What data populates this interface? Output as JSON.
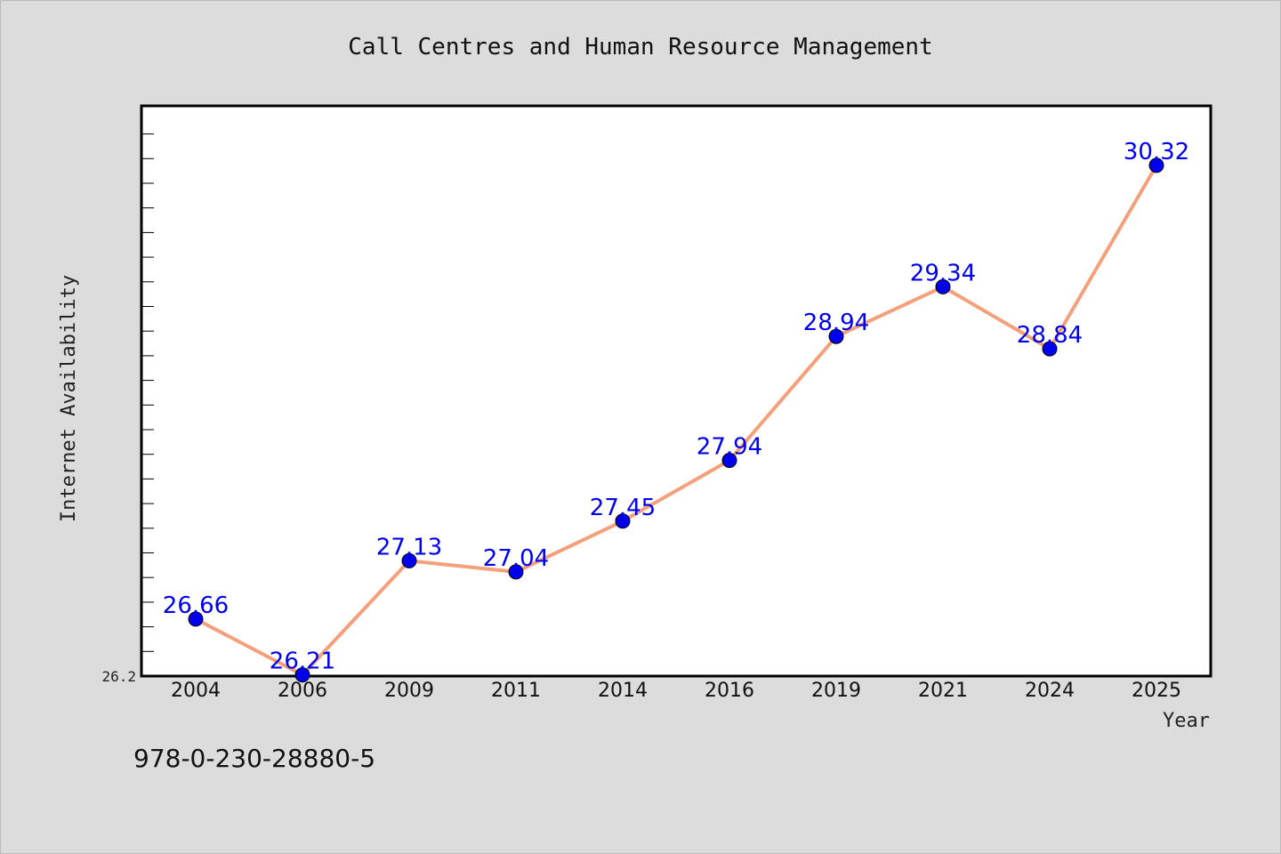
{
  "chart_data": {
    "type": "line",
    "title": "Call Centres and Human Resource Management",
    "xlabel": "Year",
    "ylabel": "Internet Availability",
    "categories": [
      "2004",
      "2006",
      "2009",
      "2011",
      "2014",
      "2016",
      "2019",
      "2021",
      "2024",
      "2025"
    ],
    "series": [
      {
        "values": [
          26.66,
          26.21,
          27.13,
          27.04,
          27.45,
          27.94,
          28.94,
          29.34,
          28.84,
          30.32
        ],
        "line_color": "#f4a07a",
        "marker_color": "#0000ee",
        "label_color": "#0000ee"
      }
    ],
    "data_labels": [
      "26.66",
      "26.21",
      "27.13",
      "27.04",
      "27.45",
      "27.94",
      "28.94",
      "29.34",
      "28.84",
      "30.32"
    ],
    "yticks": [
      "26.2"
    ],
    "ylim": [
      26.2,
      30.8
    ],
    "grid": false,
    "legend": "none",
    "footnote": "978-0-230-28880-5"
  }
}
